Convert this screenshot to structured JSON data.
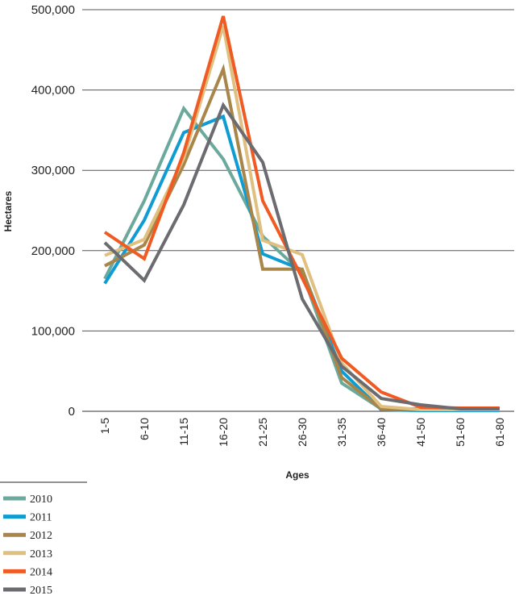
{
  "chart_data": {
    "type": "line",
    "title": "",
    "xlabel": "Ages",
    "ylabel": "Hectares",
    "categories": [
      "1-5",
      "6-10",
      "11-15",
      "16-20",
      "21-25",
      "26-30",
      "31-35",
      "36-40",
      "41-50",
      "51-60",
      "61-80"
    ],
    "ylim": [
      0,
      500000
    ],
    "yticks": [
      0,
      100000,
      200000,
      300000,
      400000,
      500000
    ],
    "ytick_labels": [
      "0",
      "100,000",
      "200,000",
      "300,000",
      "400,000",
      "500,000"
    ],
    "grid": true,
    "legend_position": "bottom-left",
    "series": [
      {
        "name": "2010",
        "color": "#6aa99c",
        "values": [
          165000,
          262000,
          377000,
          314000,
          218000,
          172000,
          35000,
          3000,
          2000,
          1000,
          1000
        ]
      },
      {
        "name": "2011",
        "color": "#0f9cd3",
        "values": [
          159000,
          238000,
          347000,
          367000,
          196000,
          176000,
          50000,
          2000,
          1000,
          1000,
          1000
        ]
      },
      {
        "name": "2012",
        "color": "#a8864a",
        "values": [
          181000,
          207000,
          307000,
          426000,
          177000,
          177000,
          42000,
          3000,
          3000,
          3000,
          3000
        ]
      },
      {
        "name": "2013",
        "color": "#e0c080",
        "values": [
          194000,
          214000,
          315000,
          480000,
          213000,
          195000,
          60000,
          6000,
          2000,
          2000,
          2000
        ]
      },
      {
        "name": "2014",
        "color": "#f05a23",
        "values": [
          223000,
          190000,
          322000,
          492000,
          262000,
          166000,
          66000,
          24000,
          5000,
          4000,
          4000
        ]
      },
      {
        "name": "2015",
        "color": "#6b6b70",
        "values": [
          210000,
          163000,
          257000,
          381000,
          310000,
          140000,
          56000,
          16000,
          8000,
          3000,
          3000
        ]
      }
    ]
  }
}
